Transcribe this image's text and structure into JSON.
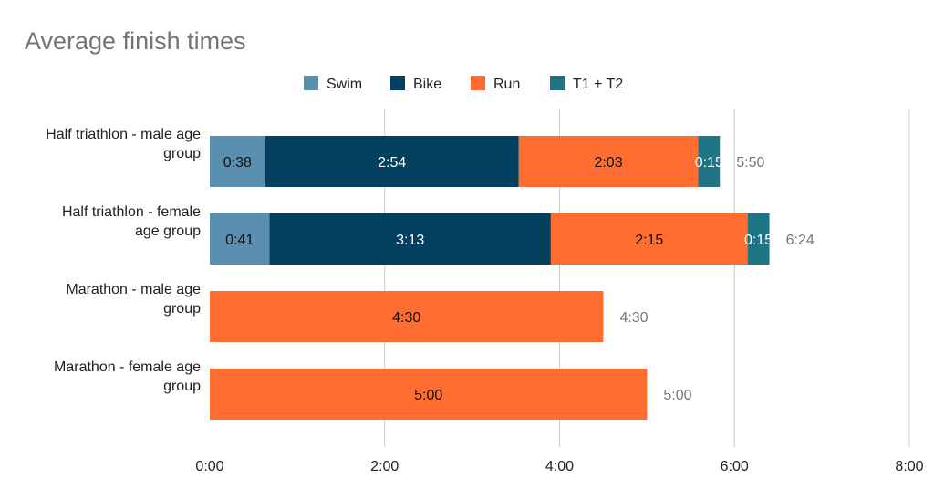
{
  "chart_data": {
    "type": "bar",
    "orientation": "horizontal",
    "stacked": true,
    "title": "Average finish times",
    "xlabel": "",
    "ylabel": "",
    "legend_position": "top",
    "grid": true,
    "xlim": [
      0,
      480
    ],
    "x_unit": "minutes",
    "x_ticks": [
      {
        "value": 0,
        "label": "0:00"
      },
      {
        "value": 120,
        "label": "2:00"
      },
      {
        "value": 240,
        "label": "4:00"
      },
      {
        "value": 360,
        "label": "6:00"
      },
      {
        "value": 480,
        "label": "8:00"
      }
    ],
    "categories": [
      [
        "Half triathlon - male age",
        "group"
      ],
      [
        "Half triathlon - female",
        "age group"
      ],
      [
        "Marathon - male age",
        "group"
      ],
      [
        "Marathon - female age",
        "group"
      ]
    ],
    "series": [
      {
        "name": "Swim",
        "color": "#5b8fb0",
        "label_color": "#111111",
        "values": [
          38,
          41,
          0,
          0
        ],
        "labels": [
          "0:38",
          "0:41",
          "",
          ""
        ]
      },
      {
        "name": "Bike",
        "color": "#03405f",
        "label_color": "#ffffff",
        "values": [
          174,
          193,
          0,
          0
        ],
        "labels": [
          "2:54",
          "3:13",
          "",
          ""
        ]
      },
      {
        "name": "Run",
        "color": "#ff6d31",
        "label_color": "#111111",
        "values": [
          123,
          135,
          270,
          300
        ],
        "labels": [
          "2:03",
          "2:15",
          "4:30",
          "5:00"
        ]
      },
      {
        "name": "T1 + T2",
        "color": "#1f7585",
        "label_color": "#ffffff",
        "values": [
          15,
          15,
          0,
          0
        ],
        "labels": [
          "0:15",
          "0:15",
          "",
          ""
        ]
      }
    ],
    "totals": [
      "5:50",
      "6:24",
      "4:30",
      "5:00"
    ]
  }
}
